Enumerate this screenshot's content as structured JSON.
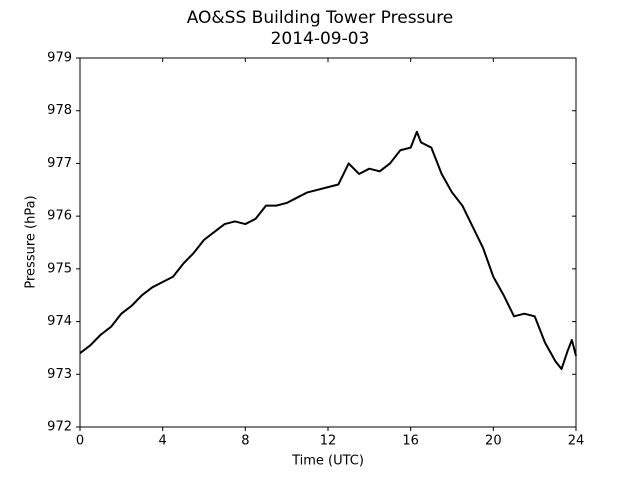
{
  "chart_data": {
    "type": "line",
    "title": "AO&SS Building Tower Pressure",
    "subtitle": "2014-09-03",
    "x_label": "Time (UTC)",
    "y_label": "Pressure (hPa)",
    "x": [
      0,
      0.5,
      1,
      1.5,
      2,
      2.5,
      3,
      3.5,
      4,
      4.5,
      5,
      5.5,
      6,
      6.5,
      7,
      7.5,
      8,
      8.5,
      9,
      9.5,
      10,
      10.5,
      11,
      11.5,
      12,
      12.5,
      13,
      13.5,
      14,
      14.5,
      15,
      15.5,
      16,
      16.3,
      16.5,
      17,
      17.5,
      18,
      18.5,
      19,
      19.5,
      20,
      20.5,
      21,
      21.5,
      22,
      22.5,
      23,
      23.3,
      23.6,
      23.8,
      24
    ],
    "values": [
      973.4,
      973.55,
      973.75,
      973.9,
      974.15,
      974.3,
      974.5,
      974.65,
      974.75,
      974.85,
      975.1,
      975.3,
      975.55,
      975.7,
      975.85,
      975.9,
      975.85,
      975.95,
      976.2,
      976.2,
      976.25,
      976.35,
      976.45,
      976.5,
      976.55,
      976.6,
      977.0,
      976.8,
      976.9,
      976.85,
      977.0,
      977.25,
      977.3,
      977.6,
      977.4,
      977.3,
      976.8,
      976.45,
      976.2,
      975.8,
      975.4,
      974.85,
      974.5,
      974.1,
      974.15,
      974.1,
      973.6,
      973.25,
      973.1,
      973.45,
      973.65,
      973.35
    ],
    "color": "#000000",
    "xlim": [
      0,
      24
    ],
    "xticks": [
      0,
      4,
      8,
      12,
      16,
      20,
      24
    ],
    "ylim": [
      972,
      979
    ],
    "yticks": [
      972,
      973,
      974,
      975,
      976,
      977,
      978,
      979
    ]
  }
}
